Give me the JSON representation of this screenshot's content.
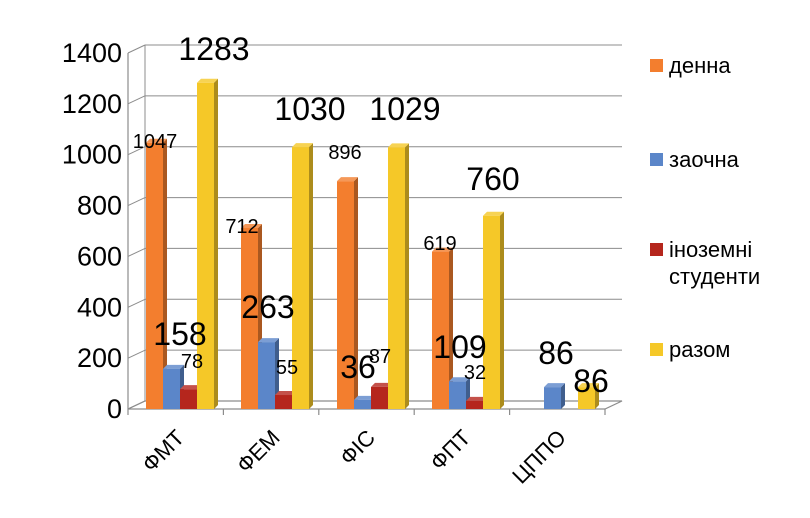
{
  "chart_data": {
    "type": "bar",
    "categories": [
      "ФМТ",
      "ФЕМ",
      "ФІС",
      "ФПТ",
      "ЦППО"
    ],
    "series": [
      {
        "name": "денна",
        "color": "#F37E2E",
        "values": [
          1047,
          712,
          896,
          619,
          0
        ]
      },
      {
        "name": "заочна",
        "color": "#5B86C9",
        "values": [
          158,
          263,
          36,
          109,
          86
        ]
      },
      {
        "name": "іноземні студенти",
        "color": "#B5261D",
        "values": [
          78,
          55,
          87,
          32,
          0
        ]
      },
      {
        "name": "разом",
        "color": "#F5C828",
        "values": [
          1283,
          1030,
          1029,
          760,
          86
        ]
      }
    ],
    "data_labels": [
      {
        "category": 0,
        "series": 0,
        "text": "1047"
      },
      {
        "category": 0,
        "series": 1,
        "text": "158"
      },
      {
        "category": 0,
        "series": 2,
        "text": "78"
      },
      {
        "category": 0,
        "series": 3,
        "text": "1283"
      },
      {
        "category": 1,
        "series": 0,
        "text": "712"
      },
      {
        "category": 1,
        "series": 1,
        "text": "263"
      },
      {
        "category": 1,
        "series": 2,
        "text": "55"
      },
      {
        "category": 1,
        "series": 3,
        "text": "1030"
      },
      {
        "category": 2,
        "series": 0,
        "text": "896"
      },
      {
        "category": 2,
        "series": 1,
        "text": "36"
      },
      {
        "category": 2,
        "series": 2,
        "text": "87"
      },
      {
        "category": 2,
        "series": 3,
        "text": "1029"
      },
      {
        "category": 3,
        "series": 0,
        "text": "619"
      },
      {
        "category": 3,
        "series": 1,
        "text": "109"
      },
      {
        "category": 3,
        "series": 2,
        "text": "32"
      },
      {
        "category": 3,
        "series": 3,
        "text": "760"
      },
      {
        "category": 4,
        "series": 1,
        "text": "86"
      },
      {
        "category": 4,
        "series": 3,
        "text": "86"
      }
    ],
    "y_ticks": [
      "0",
      "200",
      "400",
      "600",
      "800",
      "1000",
      "1200",
      "1400"
    ],
    "ylim": [
      0,
      1400
    ],
    "grid": true,
    "three_d": true,
    "legend_position": "right",
    "title": "",
    "xlabel": "",
    "ylabel": ""
  }
}
